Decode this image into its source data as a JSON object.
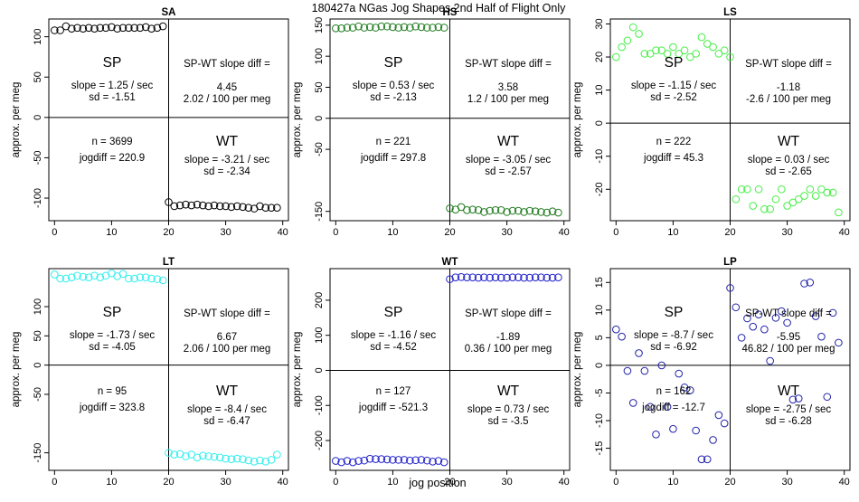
{
  "figure": {
    "title": "180427a    NGas Jog Shapes 2nd Half of Flight Only",
    "xlabel": "jog position",
    "ylabel": "approx. per meg"
  },
  "chart_data": [
    {
      "type": "scatter",
      "title": "SA",
      "color": "#000000",
      "xlim": [
        -1,
        41
      ],
      "ylim": [
        -128,
        122
      ],
      "x_ticks": [
        "0",
        "10",
        "20",
        "30",
        "40"
      ],
      "y_ticks": [
        {
          "value": -100,
          "label": "-100"
        },
        {
          "value": -50,
          "label": "-50"
        },
        {
          "value": 0,
          "label": "0"
        },
        {
          "value": 50,
          "label": "50"
        },
        {
          "value": 100,
          "label": "100"
        }
      ],
      "x": [
        0,
        1,
        2,
        3,
        4,
        5,
        6,
        7,
        8,
        9,
        10,
        11,
        12,
        13,
        14,
        15,
        16,
        17,
        18,
        19,
        20,
        21,
        22,
        23,
        24,
        25,
        26,
        27,
        28,
        29,
        30,
        31,
        32,
        33,
        34,
        35,
        36,
        37,
        38,
        39
      ],
      "y": [
        108,
        108,
        113,
        110,
        111,
        110,
        111,
        110,
        111,
        111,
        112,
        110,
        111,
        111,
        111,
        111,
        112,
        110,
        111,
        113,
        -105,
        -110,
        -109,
        -108,
        -109,
        -108,
        -109,
        -110,
        -109,
        -110,
        -110,
        -111,
        -110,
        -111,
        -112,
        -113,
        -110,
        -112,
        -112,
        -112
      ],
      "left": {
        "label": "SP",
        "line1": "slope = 1.25 / sec",
        "line2": "sd = -1.51"
      },
      "right": {
        "label": "SP-WT slope diff =",
        "line1": "4.45",
        "line2": "2.02 / 100 per meg"
      },
      "n_text": "n = 3699",
      "jog_text": "jogdiff = 220.9",
      "wt": {
        "label": "WT",
        "line1": "slope = -3.21 / sec",
        "line2": "sd = -2.34"
      }
    },
    {
      "type": "scatter",
      "title": "HS",
      "color": "#1e7b1e",
      "xlim": [
        -1,
        41
      ],
      "ylim": [
        -165,
        160
      ],
      "x_ticks": [
        "0",
        "10",
        "20",
        "30",
        "40"
      ],
      "y_ticks": [
        {
          "value": -150,
          "label": "-150"
        },
        {
          "value": -50,
          "label": "-50"
        },
        {
          "value": 0,
          "label": "0"
        },
        {
          "value": 50,
          "label": "50"
        },
        {
          "value": 100,
          "label": "100"
        },
        {
          "value": 150,
          "label": "150"
        }
      ],
      "x": [
        0,
        1,
        2,
        3,
        4,
        5,
        6,
        7,
        8,
        9,
        10,
        11,
        12,
        13,
        14,
        15,
        16,
        17,
        18,
        19,
        20,
        21,
        22,
        23,
        24,
        25,
        26,
        27,
        28,
        29,
        30,
        31,
        32,
        33,
        34,
        35,
        36,
        37,
        38,
        39
      ],
      "y": [
        145,
        145,
        146,
        146,
        148,
        146,
        147,
        146,
        148,
        148,
        147,
        146,
        147,
        146,
        148,
        147,
        146,
        146,
        147,
        146,
        -145,
        -147,
        -143,
        -148,
        -147,
        -148,
        -151,
        -149,
        -148,
        -148,
        -151,
        -149,
        -149,
        -151,
        -149,
        -150,
        -151,
        -152,
        -150,
        -152
      ],
      "left": {
        "label": "SP",
        "line1": "slope = 0.53 / sec",
        "line2": "sd = -2.13"
      },
      "right": {
        "label": "SP-WT slope diff =",
        "line1": "3.58",
        "line2": "1.2 / 100 per meg"
      },
      "n_text": "n = 221",
      "jog_text": "jogdiff = 297.8",
      "wt": {
        "label": "WT",
        "line1": "slope = -3.05 / sec",
        "line2": "sd = -2.57"
      }
    },
    {
      "type": "scatter",
      "title": "LS",
      "color": "#44ee44",
      "xlim": [
        -1,
        41
      ],
      "ylim": [
        -29.5,
        31.5
      ],
      "x_ticks": [
        "0",
        "10",
        "20",
        "30",
        "40"
      ],
      "y_ticks": [
        {
          "value": -20,
          "label": "-20"
        },
        {
          "value": -10,
          "label": "-10"
        },
        {
          "value": 0,
          "label": "0"
        },
        {
          "value": 10,
          "label": "10"
        },
        {
          "value": 20,
          "label": "20"
        },
        {
          "value": 30,
          "label": "30"
        }
      ],
      "x": [
        0,
        1,
        2,
        3,
        4,
        5,
        6,
        7,
        8,
        9,
        10,
        11,
        12,
        13,
        14,
        15,
        16,
        17,
        18,
        19,
        20,
        21,
        22,
        23,
        24,
        25,
        26,
        27,
        28,
        29,
        30,
        31,
        32,
        33,
        34,
        35,
        36,
        37,
        38,
        39
      ],
      "y": [
        20,
        23,
        25,
        29,
        27,
        21,
        21,
        22,
        22,
        21,
        23,
        21,
        22,
        20,
        21,
        26,
        24,
        23,
        21,
        22,
        20,
        -23,
        -20,
        -20,
        -25,
        -20,
        -26,
        -26,
        -23,
        -20,
        -25,
        -24,
        -23,
        -22,
        -20,
        -22,
        -20,
        -21,
        -21,
        -27
      ],
      "left": {
        "label": "SP",
        "line1": "slope = -1.15 / sec",
        "line2": "sd = -2.52"
      },
      "right": {
        "label": "SP-WT slope diff =",
        "line1": "-1.18",
        "line2": "-2.6 / 100 per meg"
      },
      "n_text": "n = 222",
      "jog_text": "jogdiff = 45.3",
      "wt": {
        "label": "WT",
        "line1": "slope = 0.03 / sec",
        "line2": "sd = -2.65"
      }
    },
    {
      "type": "scatter",
      "title": "LT",
      "color": "#33eeee",
      "xlim": [
        -1,
        41
      ],
      "ylim": [
        -180,
        165
      ],
      "x_ticks": [
        "0",
        "10",
        "20",
        "30",
        "40"
      ],
      "y_ticks": [
        {
          "value": -150,
          "label": "-150"
        },
        {
          "value": -50,
          "label": "-50"
        },
        {
          "value": 0,
          "label": "0"
        },
        {
          "value": 50,
          "label": "50"
        },
        {
          "value": 100,
          "label": "100"
        }
      ],
      "x": [
        0,
        1,
        2,
        3,
        4,
        5,
        6,
        7,
        8,
        9,
        10,
        11,
        12,
        13,
        14,
        15,
        16,
        17,
        18,
        19,
        20,
        21,
        22,
        23,
        24,
        25,
        26,
        27,
        28,
        29,
        30,
        31,
        32,
        33,
        34,
        35,
        36,
        37,
        38,
        39
      ],
      "y": [
        155,
        148,
        148,
        150,
        153,
        151,
        150,
        153,
        150,
        153,
        157,
        152,
        156,
        148,
        148,
        150,
        150,
        148,
        147,
        145,
        -150,
        -153,
        -152,
        -156,
        -153,
        -158,
        -155,
        -156,
        -157,
        -158,
        -160,
        -161,
        -160,
        -161,
        -163,
        -165,
        -163,
        -165,
        -162,
        -153
      ],
      "left": {
        "label": "SP",
        "line1": "slope = -1.73 / sec",
        "line2": "sd = -4.05"
      },
      "right": {
        "label": "SP-WT slope diff =",
        "line1": "6.67",
        "line2": "2.06 / 100 per meg"
      },
      "n_text": "n = 95",
      "jog_text": "jogdiff = 323.8",
      "wt": {
        "label": "WT",
        "line1": "slope = -8.4 / sec",
        "line2": "sd = -6.47"
      }
    },
    {
      "type": "scatter",
      "title": "WT",
      "color": "#2222cc",
      "xlim": [
        -1,
        41
      ],
      "ylim": [
        -285,
        290
      ],
      "x_ticks": [
        "0",
        "10",
        "20",
        "30",
        "40"
      ],
      "y_ticks": [
        {
          "value": -200,
          "label": "-200"
        },
        {
          "value": -100,
          "label": "-100"
        },
        {
          "value": 0,
          "label": "0"
        },
        {
          "value": 100,
          "label": "100"
        },
        {
          "value": 200,
          "label": "200"
        }
      ],
      "x": [
        0,
        1,
        2,
        3,
        4,
        5,
        6,
        7,
        8,
        9,
        10,
        11,
        12,
        13,
        14,
        15,
        16,
        17,
        18,
        19,
        20,
        21,
        22,
        23,
        24,
        25,
        26,
        27,
        28,
        29,
        30,
        31,
        32,
        33,
        34,
        35,
        36,
        37,
        38,
        39
      ],
      "y": [
        -258,
        -262,
        -258,
        -262,
        -258,
        -257,
        -252,
        -253,
        -253,
        -254,
        -255,
        -255,
        -255,
        -257,
        -256,
        -255,
        -257,
        -260,
        -258,
        -262,
        260,
        265,
        266,
        265,
        265,
        264,
        265,
        264,
        265,
        264,
        264,
        265,
        265,
        264,
        264,
        265,
        265,
        264,
        264,
        265
      ],
      "left": {
        "label": "SP",
        "line1": "slope = -1.16 / sec",
        "line2": "sd = -4.52"
      },
      "right": {
        "label": "SP-WT slope diff =",
        "line1": "-1.89",
        "line2": "0.36 / 100 per meg"
      },
      "n_text": "n = 127",
      "jog_text": "jogdiff = -521.3",
      "wt": {
        "label": "WT",
        "line1": "slope = 0.73 / sec",
        "line2": "sd = -3.5"
      }
    },
    {
      "type": "scatter",
      "title": "LP",
      "color": "#2222aa",
      "xlim": [
        -1,
        41
      ],
      "ylim": [
        -19,
        17.5
      ],
      "x_ticks": [
        "0",
        "10",
        "20",
        "30",
        "40"
      ],
      "y_ticks": [
        {
          "value": -15,
          "label": "-15"
        },
        {
          "value": -10,
          "label": "-10"
        },
        {
          "value": -5,
          "label": "-5"
        },
        {
          "value": 0,
          "label": "0"
        },
        {
          "value": 5,
          "label": "5"
        },
        {
          "value": 10,
          "label": "10"
        },
        {
          "value": 15,
          "label": "15"
        }
      ],
      "x": [
        0,
        1,
        2,
        3,
        4,
        5,
        6,
        7,
        8,
        9,
        10,
        11,
        12,
        13,
        14,
        15,
        16,
        17,
        18,
        19,
        20,
        21,
        22,
        23,
        24,
        25,
        26,
        27,
        28,
        29,
        30,
        31,
        32,
        33,
        34,
        35,
        36,
        37,
        38,
        39
      ],
      "y": [
        6.5,
        5.2,
        -1,
        -6.8,
        2.2,
        -1,
        -7.5,
        -12.5,
        0,
        -7.5,
        -11.5,
        -1.5,
        -4,
        -4.5,
        -11.8,
        -17,
        -17,
        -13.5,
        -9,
        -10.5,
        14,
        10.5,
        5,
        8.5,
        7,
        9.2,
        6.5,
        0.8,
        8.6,
        9.8,
        7.7,
        -6.2,
        -6,
        14.8,
        15,
        8.9,
        5.2,
        -5.7,
        9.5,
        4.1
      ],
      "left": {
        "label": "SP",
        "line1": "slope = -8.7 / sec",
        "line2": "sd = -6.92"
      },
      "right": {
        "label": "SP-WT slope diff =",
        "line1": "-5.95",
        "line2": "46.82 / 100 per meg"
      },
      "n_text": "n = 162",
      "jog_text": "jogdiff = -12.7",
      "wt": {
        "label": "WT",
        "line1": "slope = -2.75 / sec",
        "line2": "sd = -6.28"
      }
    }
  ]
}
